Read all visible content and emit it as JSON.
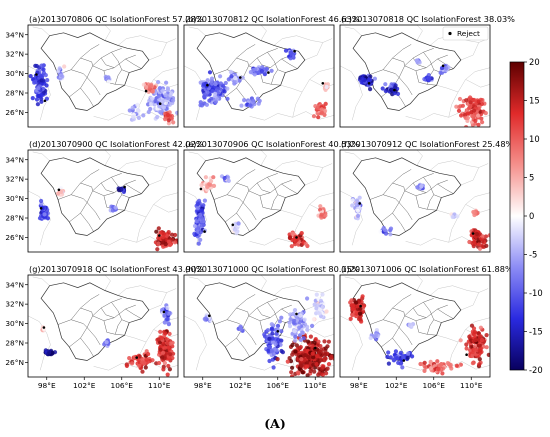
{
  "caption": "(A)",
  "chart_data": {
    "type": "scatter",
    "colorbar": {
      "min": -20,
      "max": 20,
      "ticks": [
        20,
        15,
        10,
        5,
        0,
        -5,
        -10,
        -15,
        -20
      ],
      "colors": [
        "#08005e",
        "#2a2ae0",
        "#8c8cf5",
        "#ffffff",
        "#f5908c",
        "#e02a2a",
        "#5e0000"
      ]
    },
    "x_ticks": [
      "98°E",
      "102°E",
      "106°E",
      "110°E"
    ],
    "x_tick_values": [
      98,
      102,
      106,
      110
    ],
    "y_ticks": [
      "34°N",
      "32°N",
      "30°N",
      "28°N",
      "26°N"
    ],
    "y_tick_values": [
      34,
      32,
      30,
      28,
      26
    ],
    "xlim": [
      96,
      112
    ],
    "ylim": [
      24.5,
      35
    ],
    "legend": {
      "label": "Reject",
      "placement": "top-right"
    },
    "panels": [
      {
        "title": "(a)2013070806 QC IsolationForest 57.28%",
        "blobs": [
          [
            97.2,
            29.0,
            0.9,
            2.4,
            -12,
            90
          ],
          [
            99.5,
            30.0,
            0.6,
            0.8,
            -4,
            18
          ],
          [
            104.5,
            29.5,
            0.5,
            0.4,
            -6,
            8
          ],
          [
            110.3,
            27.3,
            1.7,
            2.2,
            -6,
            120
          ],
          [
            109.0,
            28.5,
            0.8,
            0.6,
            8,
            25
          ],
          [
            107.5,
            26.0,
            0.7,
            1.0,
            -3,
            20
          ],
          [
            111.0,
            25.6,
            0.8,
            0.6,
            10,
            25
          ]
        ],
        "rejects": [
          [
            96.9,
            29.9
          ],
          [
            97.8,
            27.2
          ],
          [
            110.1,
            26.9
          ],
          [
            108.6,
            28.2
          ]
        ]
      },
      {
        "title": "(b)2013070812 QC IsolationForest 46.63%",
        "blobs": [
          [
            99.0,
            28.3,
            1.7,
            1.7,
            -9,
            110
          ],
          [
            101.5,
            29.5,
            1.1,
            0.8,
            -6,
            40
          ],
          [
            104.0,
            30.3,
            1.2,
            0.5,
            -9,
            40
          ],
          [
            107.5,
            32.0,
            0.6,
            0.5,
            -10,
            18
          ],
          [
            103.0,
            27.0,
            1.0,
            0.6,
            -7,
            25
          ],
          [
            110.5,
            26.2,
            0.8,
            0.8,
            10,
            30
          ],
          [
            111.2,
            28.7,
            0.4,
            0.6,
            4,
            12
          ]
        ],
        "rejects": [
          [
            98.5,
            28.8
          ],
          [
            102.0,
            29.6
          ],
          [
            105.0,
            30.1
          ],
          [
            107.8,
            32.3
          ],
          [
            110.8,
            29.0
          ]
        ]
      },
      {
        "title": "(c)2013070818 QC IsolationForest 38.03%",
        "blobs": [
          [
            98.8,
            29.2,
            0.8,
            0.9,
            -14,
            40
          ],
          [
            101.5,
            28.5,
            1.0,
            0.6,
            -13,
            30
          ],
          [
            105.5,
            29.5,
            0.6,
            0.4,
            -12,
            14
          ],
          [
            107.2,
            30.5,
            0.6,
            0.5,
            -9,
            16
          ],
          [
            110.2,
            26.3,
            1.6,
            1.6,
            11,
            110
          ],
          [
            104.3,
            31.3,
            0.4,
            0.3,
            -8,
            8
          ]
        ],
        "rejects": [
          [
            99.1,
            29.0
          ],
          [
            101.8,
            28.3
          ],
          [
            107.0,
            30.8
          ]
        ]
      },
      {
        "title": "(d)2013070900 QC IsolationForest 42.02%",
        "blobs": [
          [
            97.7,
            28.8,
            0.6,
            1.2,
            -11,
            45
          ],
          [
            99.5,
            30.7,
            0.4,
            0.5,
            3,
            14
          ],
          [
            106.0,
            31.0,
            0.5,
            0.4,
            -16,
            12
          ],
          [
            105.2,
            29.0,
            0.4,
            0.4,
            -8,
            8
          ],
          [
            110.6,
            25.8,
            1.4,
            1.1,
            14,
            100
          ]
        ],
        "rejects": [
          [
            97.4,
            29.0
          ],
          [
            99.3,
            30.9
          ],
          [
            106.3,
            31.2
          ],
          [
            110.0,
            26.2
          ]
        ]
      },
      {
        "title": "(e)2013070906 QC IsolationForest 40.53%",
        "blobs": [
          [
            97.7,
            28.0,
            0.7,
            2.6,
            -10,
            85
          ],
          [
            98.5,
            31.5,
            1.0,
            0.8,
            5,
            30
          ],
          [
            101.5,
            27.0,
            0.7,
            0.7,
            -3,
            16
          ],
          [
            108.2,
            25.7,
            1.2,
            0.9,
            12,
            55
          ],
          [
            110.8,
            28.5,
            0.6,
            0.8,
            8,
            20
          ],
          [
            100.5,
            32.0,
            0.6,
            0.4,
            -6,
            10
          ]
        ],
        "rejects": [
          [
            97.8,
            31.0
          ],
          [
            98.2,
            26.6
          ],
          [
            101.2,
            27.3
          ],
          [
            108.0,
            26.0
          ]
        ]
      },
      {
        "title": "(f)2013070912 QC IsolationForest 25.48%",
        "blobs": [
          [
            97.8,
            29.3,
            0.5,
            1.5,
            -4,
            30
          ],
          [
            100.8,
            26.7,
            0.6,
            0.5,
            -6,
            12
          ],
          [
            104.6,
            31.2,
            0.5,
            0.4,
            -6,
            10
          ],
          [
            108.2,
            28.2,
            0.4,
            0.4,
            -4,
            8
          ],
          [
            110.7,
            25.8,
            1.1,
            1.2,
            14,
            60
          ],
          [
            110.5,
            28.5,
            0.5,
            0.4,
            8,
            10
          ]
        ],
        "rejects": [
          [
            98.1,
            29.5
          ],
          [
            110.2,
            26.4
          ]
        ]
      },
      {
        "title": "(g)2013070918 QC IsolationForest 43.90%",
        "blobs": [
          [
            98.3,
            27.0,
            0.7,
            0.3,
            -18,
            30
          ],
          [
            97.6,
            29.5,
            0.3,
            0.3,
            3,
            6
          ],
          [
            104.5,
            28.0,
            0.5,
            0.4,
            -8,
            10
          ],
          [
            108.0,
            26.2,
            1.5,
            1.0,
            12,
            60
          ],
          [
            110.6,
            27.5,
            1.2,
            2.5,
            14,
            110
          ],
          [
            110.8,
            31.0,
            0.6,
            1.0,
            -8,
            30
          ]
        ],
        "rejects": [
          [
            97.7,
            29.6
          ],
          [
            110.5,
            31.2
          ],
          [
            107.6,
            26.5
          ]
        ]
      },
      {
        "title": "(h)2013071000 QC IsolationForest 80.15%",
        "blobs": [
          [
            98.5,
            30.5,
            0.5,
            0.5,
            -4,
            12
          ],
          [
            105.5,
            28.0,
            1.3,
            2.5,
            -10,
            80
          ],
          [
            109.5,
            26.5,
            2.6,
            2.5,
            16,
            260
          ],
          [
            108.2,
            30.0,
            1.3,
            2.0,
            -6,
            70
          ],
          [
            110.5,
            31.5,
            0.8,
            1.5,
            -2,
            40
          ],
          [
            102.0,
            29.5,
            0.4,
            0.4,
            -10,
            6
          ]
        ],
        "rejects": [
          [
            98.7,
            30.8
          ],
          [
            106.0,
            29.2
          ],
          [
            108.0,
            31.0
          ],
          [
            110.0,
            27.5
          ]
        ]
      },
      {
        "title": "(i)2013071006 QC IsolationForest 61.88%",
        "blobs": [
          [
            97.9,
            31.5,
            0.9,
            1.1,
            14,
            110
          ],
          [
            99.7,
            28.7,
            0.5,
            0.6,
            -8,
            14
          ],
          [
            102.5,
            26.5,
            1.5,
            0.8,
            -12,
            40
          ],
          [
            106.5,
            25.5,
            2.0,
            0.8,
            10,
            60
          ],
          [
            110.6,
            27.8,
            1.3,
            2.2,
            14,
            120
          ],
          [
            103.5,
            29.8,
            0.4,
            0.3,
            -6,
            6
          ]
        ],
        "rejects": [
          [
            98.2,
            31.8
          ],
          [
            102.8,
            26.2
          ],
          [
            109.5,
            26.8
          ]
        ]
      }
    ]
  }
}
